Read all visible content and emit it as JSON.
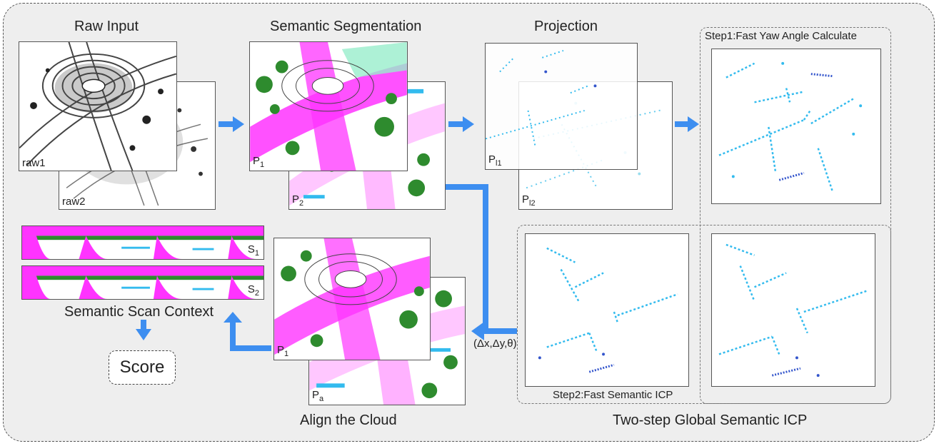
{
  "labels": {
    "raw_input": "Raw Input",
    "semantic_segmentation": "Semantic Segmentation",
    "projection": "Projection",
    "step1": "Step1:Fast Yaw Angle Calculate",
    "step2": "Step2:Fast Semantic ICP",
    "two_step": "Two-step Global Semantic ICP",
    "align_cloud": "Align the Cloud",
    "semantic_scan_context": "Semantic Scan Context",
    "score": "Score",
    "transform": "(Δx,Δy,θ)"
  },
  "panel_labels": {
    "raw1": "raw1",
    "raw2": "raw2",
    "p1_main": "P",
    "p1_sub": "1",
    "p2_main": "P",
    "p2_sub": "2",
    "pl1_main": "P",
    "pl1_sub": "l1",
    "pl2_main": "P",
    "pl2_sub": "l2",
    "align_p1_main": "P",
    "align_p1_sub": "1",
    "pa_main": "P",
    "pa_sub": "a",
    "s1_main": "S",
    "s1_sub": "1",
    "s2_main": "S",
    "s2_sub": "2"
  },
  "colors": {
    "background": "#eeeeee",
    "arrow": "#3d8ef0",
    "road": "#ff33ff",
    "vegetation": "#2e8b2e",
    "projection_points": "#33bbee",
    "projection_dark": "#3355cc"
  }
}
